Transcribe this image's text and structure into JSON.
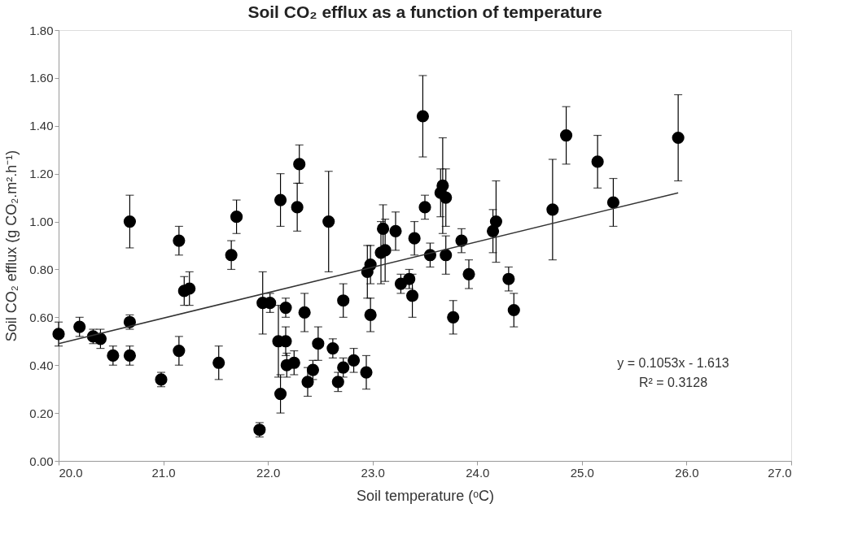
{
  "chart_data": {
    "type": "scatter",
    "title": "Soil CO₂ efflux as a function of temperature",
    "xlabel": "Soil temperature (ᵒC)",
    "ylabel": "Soil CO₂ efflux (g CO₂.m².h⁻¹)",
    "xlim": [
      20,
      27
    ],
    "ylim": [
      0,
      1.8
    ],
    "xticks": [
      {
        "value": 20,
        "label": "20.0"
      },
      {
        "value": 21,
        "label": "21.0"
      },
      {
        "value": 22,
        "label": "22.0"
      },
      {
        "value": 23,
        "label": "23.0"
      },
      {
        "value": 24,
        "label": "24.0"
      },
      {
        "value": 25,
        "label": "25.0"
      },
      {
        "value": 26,
        "label": "26.0"
      },
      {
        "value": 27,
        "label": "27.0"
      }
    ],
    "yticks": [
      {
        "value": 0,
        "label": "0.00"
      },
      {
        "value": 0.2,
        "label": "0.20"
      },
      {
        "value": 0.4,
        "label": "0.40"
      },
      {
        "value": 0.6,
        "label": "0.60"
      },
      {
        "value": 0.8,
        "label": "0.80"
      },
      {
        "value": 1.0,
        "label": "1.00"
      },
      {
        "value": 1.2,
        "label": "1.20"
      },
      {
        "value": 1.4,
        "label": "1.40"
      },
      {
        "value": 1.6,
        "label": "1.60"
      },
      {
        "value": 1.8,
        "label": "1.80"
      }
    ],
    "grid": false,
    "annotations": [
      "y = 0.1053x - 1.613",
      "R² = 0.3128"
    ],
    "series": [
      {
        "marker": "circle",
        "color": "#000000",
        "x": [
          20.0,
          20.2,
          20.33,
          20.4,
          20.52,
          20.68,
          20.68,
          20.68,
          20.98,
          21.15,
          21.15,
          21.2,
          21.25,
          21.53,
          21.65,
          21.7,
          21.92,
          21.95,
          22.02,
          22.1,
          22.12,
          22.12,
          22.17,
          22.17,
          22.18,
          22.25,
          22.28,
          22.3,
          22.35,
          22.38,
          22.43,
          22.48,
          22.58,
          22.62,
          22.67,
          22.72,
          22.72,
          22.82,
          22.94,
          22.95,
          22.98,
          22.98,
          23.08,
          23.1,
          23.12,
          23.22,
          23.27,
          23.35,
          23.38,
          23.4,
          23.48,
          23.5,
          23.55,
          23.65,
          23.67,
          23.7,
          23.7,
          23.77,
          23.85,
          23.92,
          24.15,
          24.18,
          24.3,
          24.35,
          24.72,
          24.85,
          25.15,
          25.3,
          25.92
        ],
        "values": [
          0.53,
          0.56,
          0.52,
          0.51,
          0.44,
          0.58,
          0.44,
          1.0,
          0.34,
          0.92,
          0.46,
          0.71,
          0.72,
          0.41,
          0.86,
          1.02,
          0.13,
          0.66,
          0.66,
          0.5,
          1.09,
          0.28,
          0.64,
          0.5,
          0.4,
          0.41,
          1.06,
          1.24,
          0.62,
          0.33,
          0.38,
          0.49,
          1.0,
          0.47,
          0.33,
          0.67,
          0.39,
          0.42,
          0.37,
          0.79,
          0.82,
          0.61,
          0.87,
          0.97,
          0.88,
          0.96,
          0.74,
          0.76,
          0.69,
          0.93,
          1.44,
          1.06,
          0.86,
          1.12,
          1.15,
          1.1,
          0.86,
          0.6,
          0.92,
          0.78,
          0.96,
          1.0,
          0.76,
          0.63,
          1.05,
          1.36,
          1.25,
          1.08,
          1.35
        ],
        "errors": [
          0.05,
          0.04,
          0.03,
          0.04,
          0.04,
          0.03,
          0.04,
          0.11,
          0.03,
          0.06,
          0.06,
          0.06,
          0.07,
          0.07,
          0.06,
          0.07,
          0.03,
          0.13,
          0.04,
          0.15,
          0.11,
          0.08,
          0.04,
          0.06,
          0.05,
          0.05,
          0.1,
          0.08,
          0.08,
          0.06,
          0.04,
          0.07,
          0.21,
          0.04,
          0.04,
          0.07,
          0.04,
          0.05,
          0.07,
          0.11,
          0.08,
          0.07,
          0.13,
          0.1,
          0.13,
          0.08,
          0.04,
          0.04,
          0.09,
          0.07,
          0.17,
          0.05,
          0.05,
          0.1,
          0.2,
          0.12,
          0.08,
          0.07,
          0.05,
          0.06,
          0.09,
          0.17,
          0.05,
          0.07,
          0.21,
          0.12,
          0.11,
          0.1,
          0.18
        ]
      },
      {
        "type": "line",
        "color": "#333333",
        "x": [
          20.0,
          25.92
        ],
        "values": [
          0.49,
          1.12
        ]
      }
    ]
  }
}
